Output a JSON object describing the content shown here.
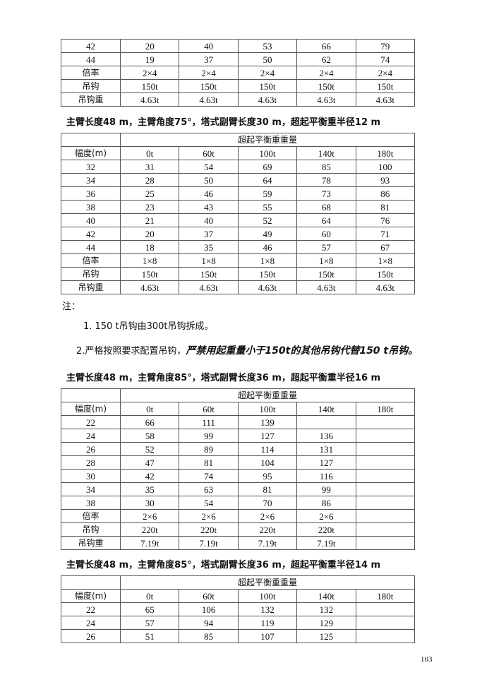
{
  "tables": [
    {
      "header": null,
      "rows": [
        [
          "42",
          "20",
          "40",
          "53",
          "66",
          "79"
        ],
        [
          "44",
          "19",
          "37",
          "50",
          "62",
          "74"
        ],
        [
          "倍率",
          "2×4",
          "2×4",
          "2×4",
          "2×4",
          "2×4"
        ],
        [
          "吊钩",
          "150t",
          "150t",
          "150t",
          "150t",
          "150t"
        ],
        [
          "吊钩重",
          "4.63t",
          "4.63t",
          "4.63t",
          "4.63t",
          "4.63t"
        ]
      ]
    },
    {
      "caption": "主臂长度48 m，主臂角度75°，塔式副臂长度30 m，超起平衡重半径12 m",
      "group_header": "超起平衡重重量",
      "header": [
        "幅度(m)",
        "0t",
        "60t",
        "100t",
        "140t",
        "180t"
      ],
      "rows": [
        [
          "32",
          "31",
          "54",
          "69",
          "85",
          "100"
        ],
        [
          "34",
          "28",
          "50",
          "64",
          "78",
          "93"
        ],
        [
          "36",
          "25",
          "46",
          "59",
          "73",
          "86"
        ],
        [
          "38",
          "23",
          "43",
          "55",
          "68",
          "81"
        ],
        [
          "40",
          "21",
          "40",
          "52",
          "64",
          "76"
        ],
        [
          "42",
          "20",
          "37",
          "49",
          "60",
          "71"
        ],
        [
          "44",
          "18",
          "35",
          "46",
          "57",
          "67"
        ],
        [
          "倍率",
          "1×8",
          "1×8",
          "1×8",
          "1×8",
          "1×8"
        ],
        [
          "吊钩",
          "150t",
          "150t",
          "150t",
          "150t",
          "150t"
        ],
        [
          "吊钩重",
          "4.63t",
          "4.63t",
          "4.63t",
          "4.63t",
          "4.63t"
        ]
      ]
    },
    {
      "caption": "主臂长度48 m，主臂角度85°，塔式副臂长度36 m，超起平衡重半径16 m",
      "group_header": "超起平衡重重量",
      "header": [
        "幅度(m)",
        "0t",
        "60t",
        "100t",
        "140t",
        "180t"
      ],
      "rows": [
        [
          "22",
          "66",
          "111",
          "139",
          "",
          ""
        ],
        [
          "24",
          "58",
          "99",
          "127",
          "136",
          ""
        ],
        [
          "26",
          "52",
          "89",
          "114",
          "131",
          ""
        ],
        [
          "28",
          "47",
          "81",
          "104",
          "127",
          ""
        ],
        [
          "30",
          "42",
          "74",
          "95",
          "116",
          ""
        ],
        [
          "34",
          "35",
          "63",
          "81",
          "99",
          ""
        ],
        [
          "38",
          "30",
          "54",
          "70",
          "86",
          ""
        ],
        [
          "倍率",
          "2×6",
          "2×6",
          "2×6",
          "2×6",
          ""
        ],
        [
          "吊钩",
          "220t",
          "220t",
          "220t",
          "220t",
          ""
        ],
        [
          "吊钩重",
          "7.19t",
          "7.19t",
          "7.19t",
          "7.19t",
          ""
        ]
      ]
    },
    {
      "caption": "主臂长度48 m，主臂角度85°，塔式副臂长度36 m，超起平衡重半径14 m",
      "group_header": "超起平衡重重量",
      "header": [
        "幅度(m)",
        "0t",
        "60t",
        "100t",
        "140t",
        "180t"
      ],
      "rows": [
        [
          "22",
          "65",
          "106",
          "132",
          "132",
          ""
        ],
        [
          "24",
          "57",
          "94",
          "119",
          "129",
          ""
        ],
        [
          "26",
          "51",
          "85",
          "107",
          "125",
          ""
        ]
      ]
    }
  ],
  "notes": {
    "label": "注：",
    "item1": "1. 150 t吊钩由300t吊钩拆成。",
    "item2_prefix": "2.严格按照要求配置吊钩，",
    "item2_emphasis": "严禁用起重量小于150t的其他吊钩代替150 t吊钩。"
  },
  "page_number": "103"
}
